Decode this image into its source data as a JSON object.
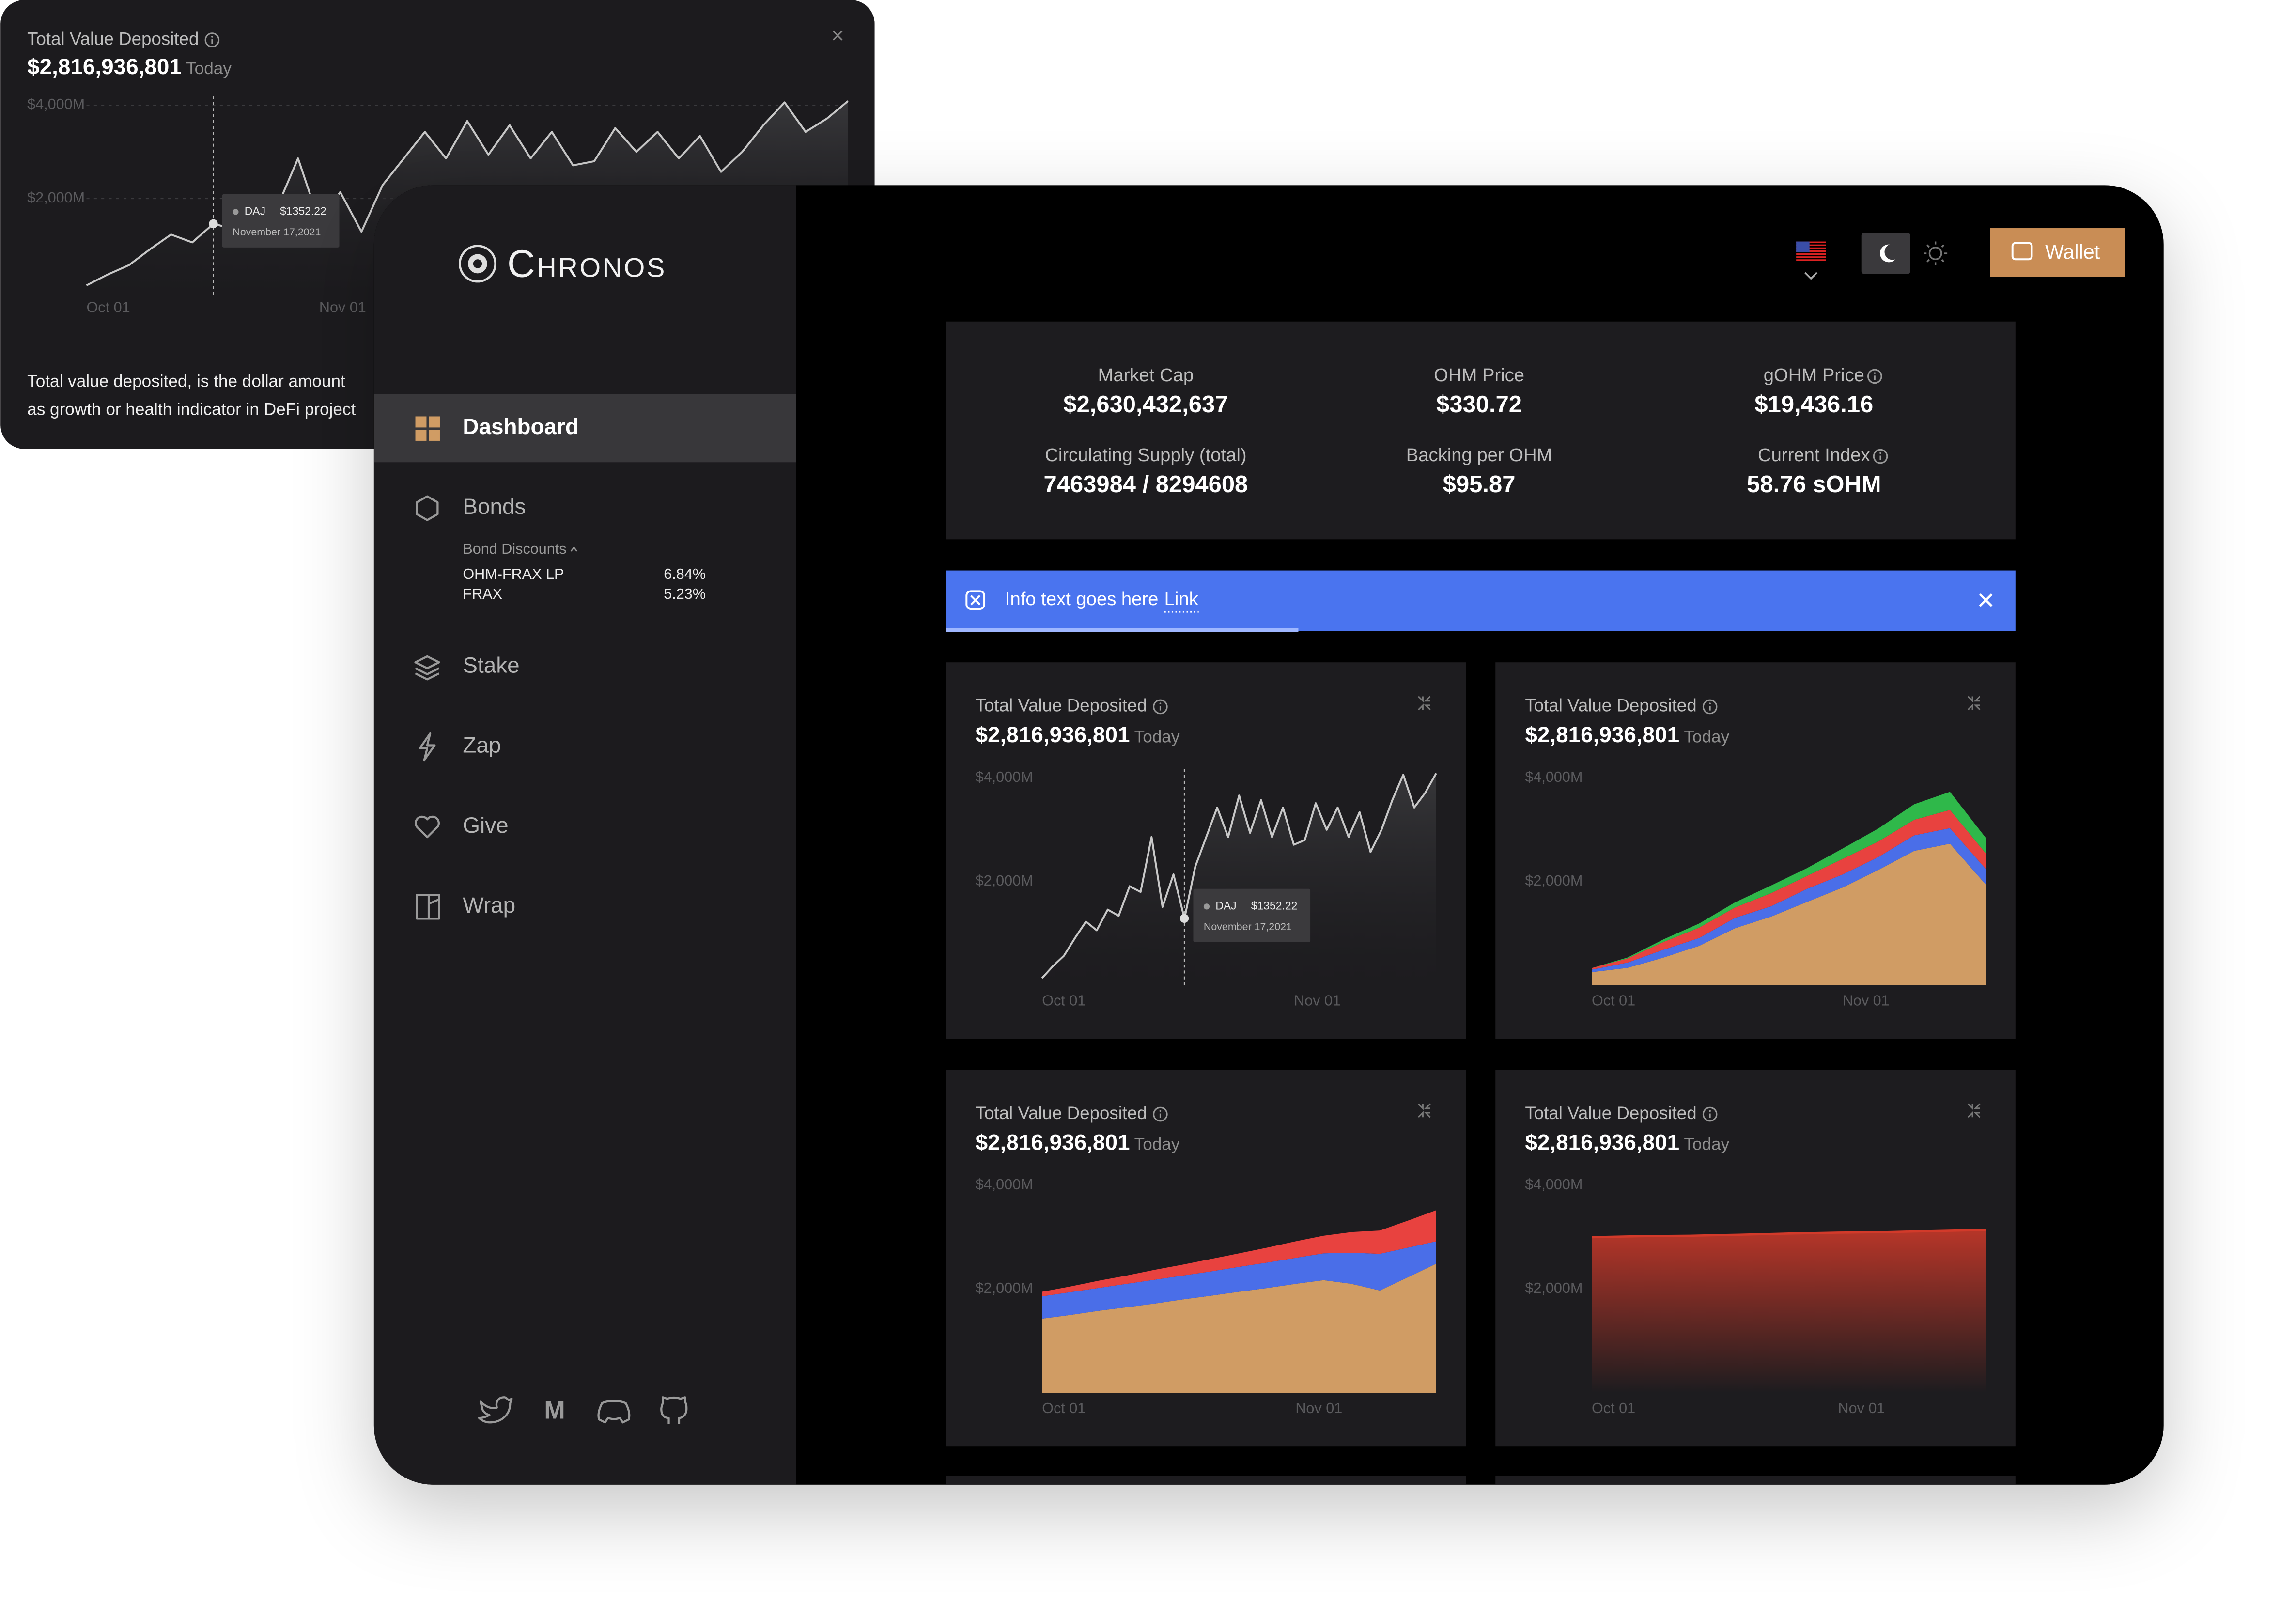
{
  "sidebar": {
    "brand": "Chronos",
    "nav": [
      "Dashboard",
      "Bonds",
      "Stake",
      "Zap",
      "Give",
      "Wrap"
    ],
    "bond_discounts": {
      "title": "Bond Discounts",
      "rows": [
        [
          "OHM-FRAX LP",
          "6.84%"
        ],
        [
          "FRAX",
          "5.23%"
        ]
      ]
    },
    "social_medium": "M"
  },
  "header": {
    "wallet": "Wallet"
  },
  "stats": [
    {
      "label": "Market Cap",
      "value": "$2,630,432,637"
    },
    {
      "label": "OHM Price",
      "value": "$330.72"
    },
    {
      "label": "gOHM Price",
      "value": "$19,436.16"
    },
    {
      "label": "Circulating Supply (total)",
      "value": "7463984 / 8294608"
    },
    {
      "label": "Backing per OHM",
      "value": "$95.87"
    },
    {
      "label": "Current Index",
      "value": "58.76 sOHM"
    }
  ],
  "banner": {
    "text": "Info text goes here",
    "link": "Link"
  },
  "popup": {
    "description": [
      "Total value deposited, is the dollar amount",
      "as growth or health indicator in DeFi project"
    ]
  },
  "chart_data": [
    {
      "type": "line",
      "title": "Total Value Deposited",
      "value": "$2,816,936,801",
      "value_note": "Today",
      "color": "#c8c8c8",
      "grid": true,
      "categories": [
        "Oct 01",
        null,
        null,
        null,
        null,
        null,
        null,
        null,
        null,
        null,
        null,
        "Nov 01",
        null,
        null,
        null,
        null,
        null,
        null,
        null,
        null,
        null,
        null,
        null,
        null,
        null,
        null,
        null,
        null,
        null,
        null,
        null,
        null,
        null,
        null,
        null,
        null,
        null
      ],
      "values": [
        140,
        370,
        570,
        910,
        1230,
        1060,
        1460,
        1340,
        1910,
        1800,
        2860,
        1510,
        2140,
        1290,
        2290,
        2860,
        3430,
        2860,
        3660,
        2940,
        3570,
        2860,
        3430,
        2710,
        2800,
        3510,
        3000,
        3430,
        2860,
        3340,
        2570,
        3000,
        3570,
        4060,
        3430,
        3710,
        4090
      ],
      "ylim": [
        0,
        4000
      ],
      "yticks": [
        {
          "value": 4000,
          "label": "$4,000M"
        },
        {
          "value": 2000,
          "label": "$2,000M"
        }
      ],
      "tooltip": {
        "name": "DAJ",
        "value": "$1352.22",
        "date": "November 17,2021"
      }
    },
    {
      "type": "line",
      "title": "Total Value Deposited",
      "value": "$2,816,936,801",
      "value_note": "Today",
      "color": "#c8c8c8",
      "grid": false,
      "categories": [
        "Oct 01",
        null,
        null,
        null,
        null,
        null,
        null,
        null,
        null,
        null,
        null,
        null,
        null,
        null,
        null,
        null,
        null,
        null,
        null,
        null,
        null,
        null,
        null,
        "Nov 01",
        null,
        null,
        null,
        null,
        null,
        null,
        null,
        null,
        null,
        null,
        null,
        null,
        null
      ],
      "values": [
        140,
        370,
        570,
        910,
        1230,
        1060,
        1460,
        1340,
        1910,
        1800,
        2860,
        1510,
        2140,
        1290,
        2290,
        2860,
        3430,
        2860,
        3660,
        2940,
        3570,
        2860,
        3430,
        2710,
        2800,
        3510,
        3000,
        3430,
        2860,
        3340,
        2570,
        3000,
        3570,
        4060,
        3430,
        3710,
        4090
      ],
      "ylim": [
        0,
        4000
      ],
      "yticks": [
        {
          "value": 4000,
          "label": "$4,000M"
        },
        {
          "value": 2000,
          "label": "$2,000M"
        }
      ],
      "tooltip": {
        "name": "DAJ",
        "value": "$1352.22",
        "date": "November 17,2021"
      }
    },
    {
      "type": "stacked-area",
      "title": "Total Value Deposited",
      "value": "$2,816,936,801",
      "value_note": "Today",
      "grid": false,
      "categories": [
        "Oct 01",
        null,
        null,
        null,
        null,
        null,
        null,
        "Nov 01",
        null,
        null,
        null,
        null
      ],
      "series": [
        {
          "color": "#d09c64",
          "values": [
            254,
            338,
            535,
            761,
            1099,
            1324,
            1606,
            1887,
            2225,
            2592,
            2732,
            1944
          ]
        },
        {
          "color": "#4a6ee8",
          "values": [
            50,
            100,
            150,
            150,
            200,
            200,
            250,
            250,
            250,
            300,
            300,
            300
          ]
        },
        {
          "color": "#e8423f",
          "values": [
            30,
            80,
            150,
            200,
            200,
            250,
            250,
            300,
            300,
            300,
            350,
            300
          ]
        },
        {
          "color": "#2fb84a",
          "values": [
            0,
            20,
            50,
            80,
            100,
            150,
            150,
            200,
            250,
            300,
            350,
            300
          ]
        }
      ],
      "ylim": [
        0,
        4000
      ],
      "yticks": [
        {
          "value": 4000,
          "label": "$4,000M"
        },
        {
          "value": 2000,
          "label": "$2,000M"
        }
      ]
    },
    {
      "type": "stacked-area",
      "title": "Total Value Deposited",
      "value": "$2,816,936,801",
      "value_note": "Today",
      "grid": false,
      "categories": [
        "Oct 01",
        null,
        null,
        null,
        null,
        null,
        null,
        null,
        null,
        "Nov 01",
        null,
        null,
        null,
        null,
        null
      ],
      "series": [
        {
          "color": "#d09c64",
          "values": [
            1430,
            1500,
            1580,
            1650,
            1720,
            1800,
            1870,
            1950,
            2020,
            2100,
            2170,
            2100,
            1970,
            2230,
            2490
          ]
        },
        {
          "color": "#4a6ee8",
          "values": [
            430,
            440,
            440,
            450,
            460,
            460,
            470,
            480,
            490,
            500,
            520,
            600,
            710,
            570,
            430
          ]
        },
        {
          "color": "#e8423f",
          "values": [
            90,
            110,
            140,
            160,
            190,
            210,
            240,
            260,
            290,
            320,
            340,
            400,
            450,
            520,
            600
          ]
        }
      ],
      "ylim": [
        0,
        4000
      ],
      "yticks": [
        {
          "value": 4000,
          "label": "$4,000M"
        },
        {
          "value": 2000,
          "label": "$2,000M"
        }
      ]
    },
    {
      "type": "area",
      "title": "Total Value Deposited",
      "value": "$2,816,936,801",
      "value_note": "Today",
      "color": "#d23a2a",
      "grid": false,
      "categories": [
        "Oct 01",
        null,
        null,
        null,
        null,
        "Nov 01",
        null,
        null,
        null
      ],
      "values": [
        3000,
        3020,
        3030,
        3050,
        3070,
        3090,
        3100,
        3120,
        3140
      ],
      "ylim": [
        0,
        4000
      ],
      "yticks": [
        {
          "value": 4000,
          "label": "$4,000M"
        },
        {
          "value": 2000,
          "label": "$2,000M"
        }
      ]
    }
  ]
}
